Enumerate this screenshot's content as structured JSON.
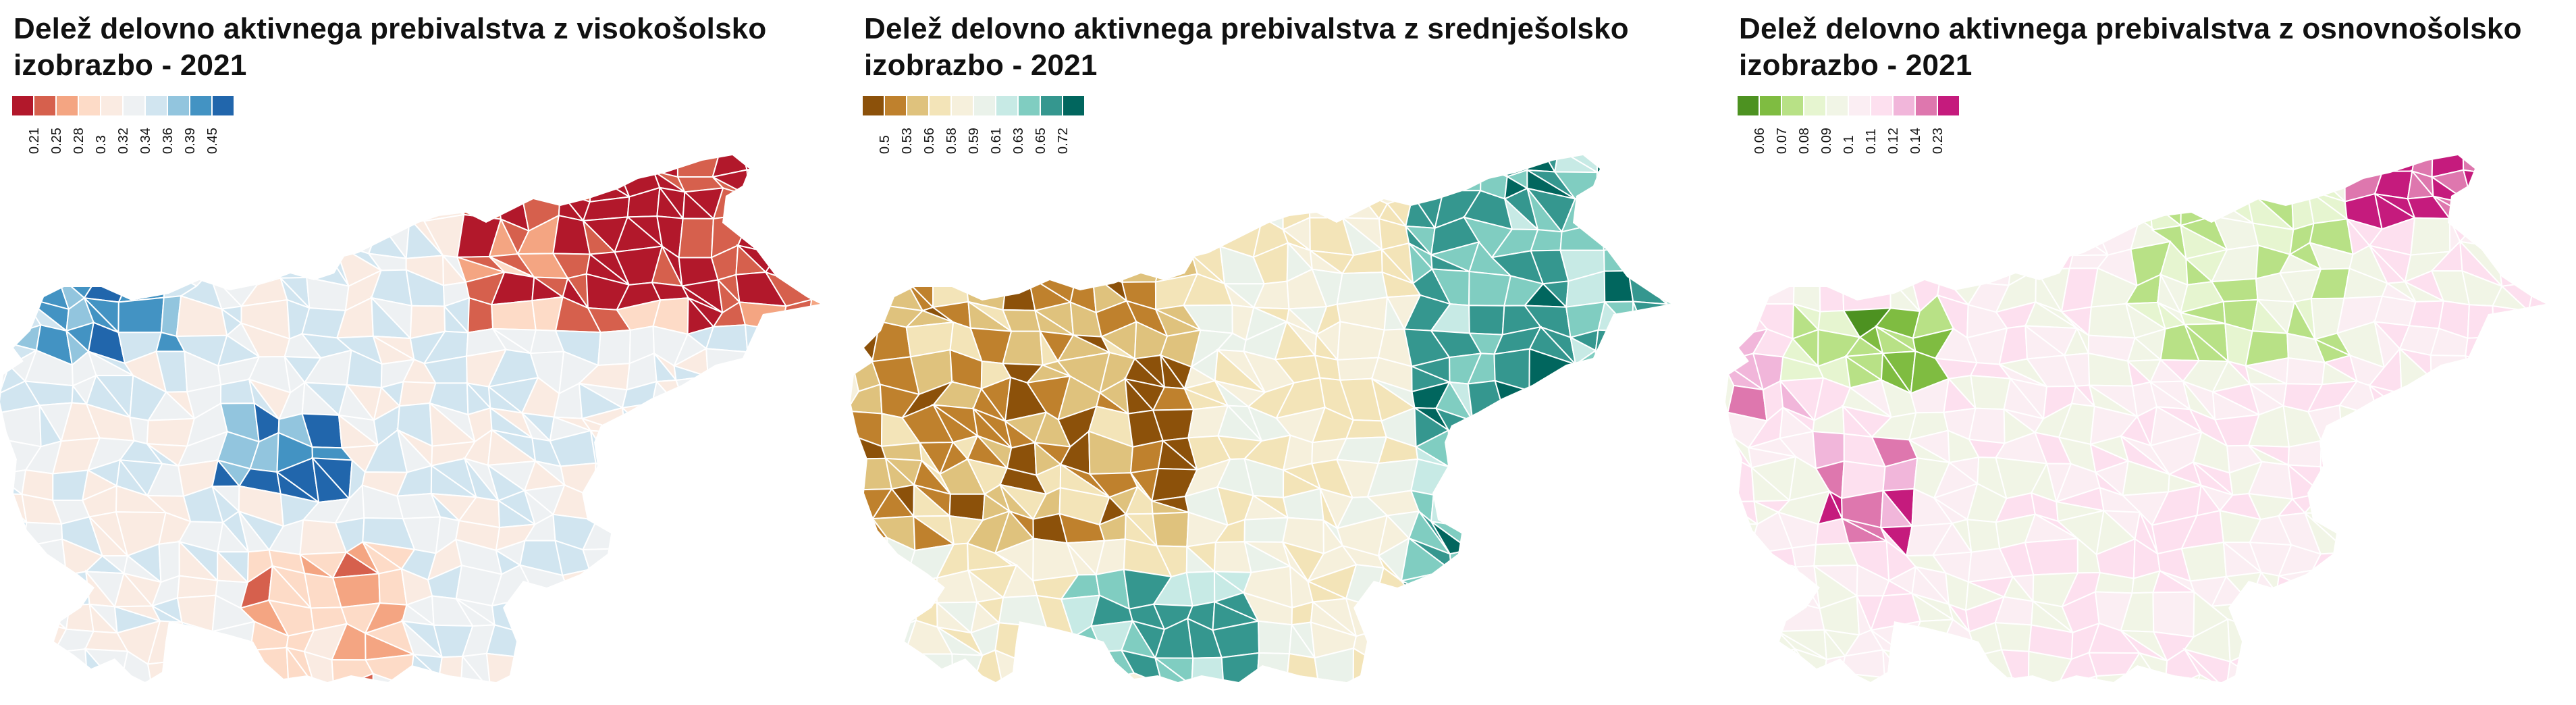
{
  "maps": [
    {
      "title": "Delež delovno aktivnega prebivalstva z visokošolsko izobrazbo - 2021",
      "legend": {
        "colors": [
          "#b2182b",
          "#d6604d",
          "#f4a582",
          "#fddbc7",
          "#faebe2",
          "#eef1f3",
          "#d1e5f0",
          "#92c5de",
          "#4393c3",
          "#2166ac"
        ],
        "labels": [
          "0.21",
          "0.25",
          "0.28",
          "0.3",
          "0.32",
          "0.34",
          "0.36",
          "0.39",
          "0.45"
        ]
      }
    },
    {
      "title": "Delež delovno aktivnega prebivalstva z srednješolsko izobrazbo - 2021",
      "legend": {
        "colors": [
          "#8c510a",
          "#bf812d",
          "#dfc27d",
          "#f3e4b8",
          "#f6f0dc",
          "#eaf2ea",
          "#c7eae5",
          "#80cdc1",
          "#35978f",
          "#01665e"
        ],
        "labels": [
          "0.5",
          "0.53",
          "0.56",
          "0.58",
          "0.59",
          "0.61",
          "0.63",
          "0.65",
          "0.72"
        ]
      }
    },
    {
      "title": "Delež delovno aktivnega prebivalstva z osnovnošolsko izobrazbo - 2021",
      "legend": {
        "colors": [
          "#4d9221",
          "#7fbc41",
          "#b8e186",
          "#e6f5d0",
          "#f1f5e6",
          "#fbeef3",
          "#fde0ef",
          "#f1b6da",
          "#de77ae",
          "#c51b7d"
        ],
        "labels": [
          "0.06",
          "0.07",
          "0.08",
          "0.09",
          "0.1",
          "0.11",
          "0.12",
          "0.14",
          "0.23"
        ]
      }
    }
  ]
}
